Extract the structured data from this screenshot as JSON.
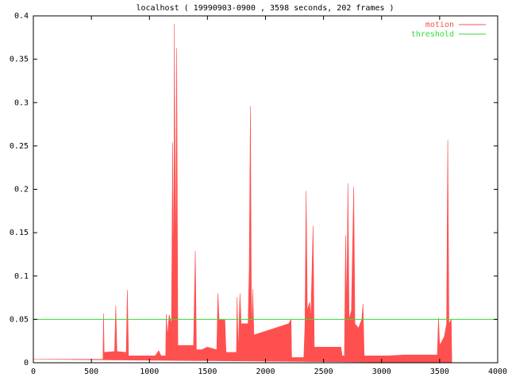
{
  "chart_data": {
    "type": "area",
    "title": "localhost ( 19990903-0900 , 3598 seconds, 202 frames )",
    "xlim": [
      0,
      4000
    ],
    "xticks": [
      0,
      500,
      1000,
      1500,
      2000,
      2500,
      3000,
      3500,
      4000
    ],
    "ylim": [
      0,
      0.4
    ],
    "yticks": [
      0,
      0.05,
      0.1,
      0.15,
      0.2,
      0.25,
      0.3,
      0.35,
      0.4
    ],
    "legend": "top right",
    "series": [
      {
        "name": "motion",
        "color": "#ff5050",
        "x": [
          0,
          600,
          605,
          610,
          700,
          710,
          720,
          800,
          810,
          820,
          1050,
          1080,
          1100,
          1140,
          1145,
          1155,
          1170,
          1190,
          1200,
          1210,
          1215,
          1225,
          1235,
          1245,
          1380,
          1395,
          1405,
          1450,
          1500,
          1580,
          1590,
          1600,
          1650,
          1660,
          1750,
          1755,
          1765,
          1780,
          1790,
          1850,
          1860,
          1870,
          1880,
          1890,
          1900,
          2200,
          2220,
          2225,
          2330,
          2340,
          2350,
          2360,
          2380,
          2390,
          2410,
          2420,
          2650,
          2660,
          2680,
          2690,
          2700,
          2710,
          2720,
          2740,
          2760,
          2770,
          2800,
          2830,
          2840,
          2850,
          3050,
          3200,
          3480,
          3490,
          3500,
          3540,
          3560,
          3570,
          3580,
          3600,
          3605
        ],
        "values": [
          0.004,
          0.004,
          0.057,
          0.012,
          0.013,
          0.066,
          0.013,
          0.012,
          0.084,
          0.008,
          0.008,
          0.014,
          0.008,
          0.008,
          0.056,
          0.03,
          0.055,
          0.045,
          0.254,
          0.09,
          0.391,
          0.1,
          0.363,
          0.02,
          0.02,
          0.129,
          0.015,
          0.015,
          0.018,
          0.015,
          0.08,
          0.05,
          0.05,
          0.012,
          0.012,
          0.076,
          0.012,
          0.08,
          0.045,
          0.045,
          0.11,
          0.296,
          0.03,
          0.085,
          0.032,
          0.045,
          0.05,
          0.006,
          0.006,
          0.043,
          0.198,
          0.06,
          0.07,
          0.05,
          0.158,
          0.018,
          0.018,
          0.008,
          0.008,
          0.147,
          0.06,
          0.207,
          0.05,
          0.06,
          0.203,
          0.045,
          0.04,
          0.05,
          0.068,
          0.008,
          0.008,
          0.009,
          0.009,
          0.052,
          0.02,
          0.03,
          0.045,
          0.257,
          0.045,
          0.05,
          0
        ]
      },
      {
        "name": "threshold",
        "color": "#33dd33",
        "x": [
          0,
          4000
        ],
        "values": [
          0.05,
          0.05
        ]
      }
    ]
  }
}
